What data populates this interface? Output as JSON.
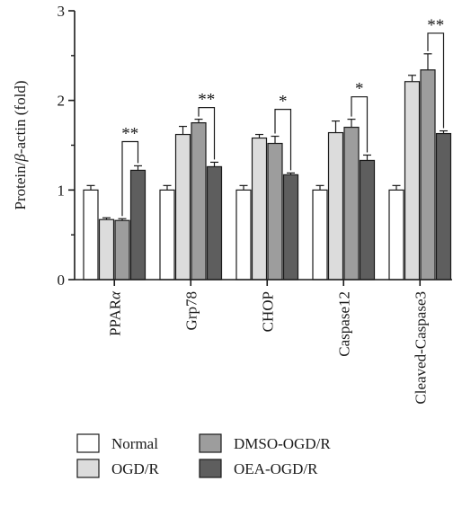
{
  "chart_data": {
    "type": "bar",
    "ylabel_parts": [
      "Protein/",
      "β",
      "-actin (fold)"
    ],
    "ylim": [
      0,
      3
    ],
    "yticks": [
      "0",
      "1",
      "2",
      "3"
    ],
    "yminor_step": 0.5,
    "grid": false,
    "legend_position": "bottom",
    "categories": [
      {
        "label_parts": [
          "PPAR",
          "α"
        ]
      },
      {
        "label_parts": [
          "Grp78"
        ]
      },
      {
        "label_parts": [
          "CHOP"
        ]
      },
      {
        "label_parts": [
          "Caspase12"
        ]
      },
      {
        "label_parts": [
          "Cleaved-Caspase3"
        ]
      }
    ],
    "series": [
      {
        "name": "Normal",
        "color": "#ffffff",
        "values": [
          1.0,
          1.0,
          1.0,
          1.0,
          1.0
        ],
        "errors": [
          0.05,
          0.05,
          0.05,
          0.05,
          0.05
        ]
      },
      {
        "name": "OGD/R",
        "color": "#dcdcdc",
        "values": [
          0.67,
          1.62,
          1.58,
          1.64,
          2.21
        ],
        "errors": [
          0.02,
          0.09,
          0.04,
          0.13,
          0.07
        ]
      },
      {
        "name": "DMSO-OGD/R",
        "color": "#9d9d9d",
        "values": [
          0.66,
          1.75,
          1.52,
          1.7,
          2.34
        ],
        "errors": [
          0.02,
          0.04,
          0.08,
          0.09,
          0.18
        ]
      },
      {
        "name": "OEA-OGD/R",
        "color": "#5e5e5e",
        "values": [
          1.22,
          1.26,
          1.17,
          1.33,
          1.63
        ],
        "errors": [
          0.05,
          0.05,
          0.02,
          0.06,
          0.03
        ]
      }
    ],
    "annotations": [
      {
        "category": 0,
        "from_series": 2,
        "to_series": 3,
        "label": "**",
        "bracket_y": 1.54
      },
      {
        "category": 1,
        "from_series": 2,
        "to_series": 3,
        "label": "**",
        "bracket_y": 1.92
      },
      {
        "category": 2,
        "from_series": 2,
        "to_series": 3,
        "label": "*",
        "bracket_y": 1.9
      },
      {
        "category": 3,
        "from_series": 2,
        "to_series": 3,
        "label": "*",
        "bracket_y": 2.04
      },
      {
        "category": 4,
        "from_series": 2,
        "to_series": 3,
        "label": "**",
        "bracket_y": 2.75
      }
    ]
  }
}
